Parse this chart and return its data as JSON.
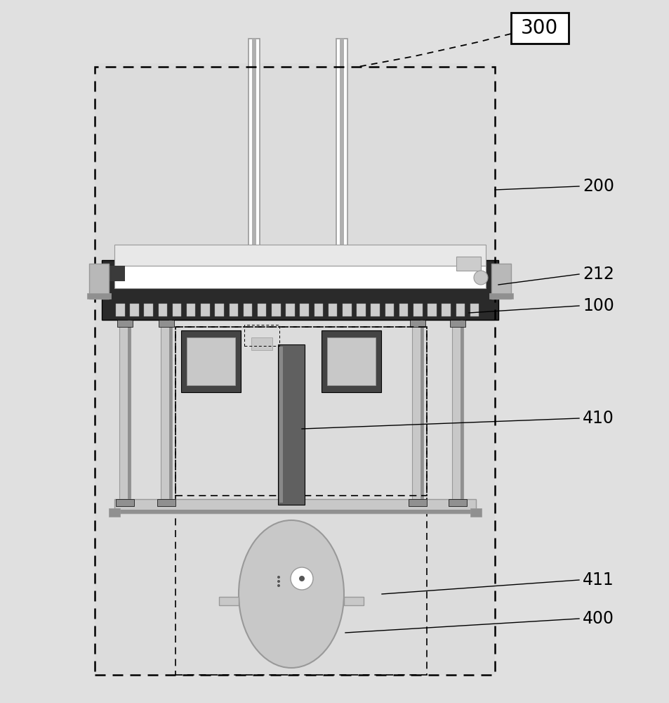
{
  "bg_color": "#e0e0e0",
  "white": "#ffffff",
  "light_gray": "#cccccc",
  "mid_gray": "#999999",
  "dark_gray": "#555555",
  "very_dark": "#2a2a2a",
  "black": "#000000",
  "label_300": "300",
  "label_200": "200",
  "label_212": "212",
  "label_100": "100",
  "label_410": "410",
  "label_411": "411",
  "label_400": "400",
  "rod_color": "#b0b0b0",
  "col_color": "#c8c8c8",
  "col_dark": "#909090",
  "plate_inner_white": "#f0f0f0",
  "shaft_color": "#606060",
  "bracket_color": "#b8b8b8",
  "inner_box_bg": "#e8e8e8"
}
